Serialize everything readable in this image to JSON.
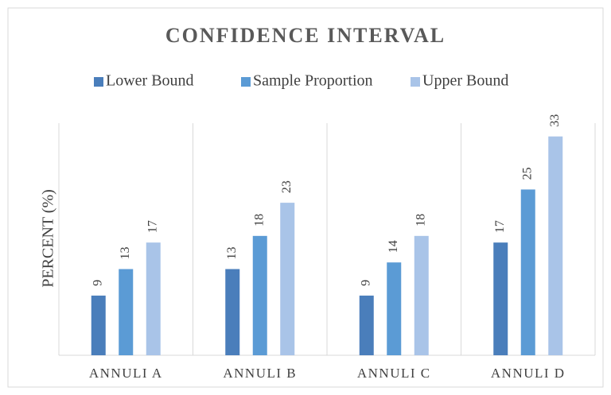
{
  "chart_data": {
    "type": "bar",
    "title": "CONFIDENCE INTERVAL",
    "y_label": "PERCENT (%)",
    "categories": [
      "ANNULI A",
      "ANNULI B",
      "ANNULI C",
      "ANNULI D"
    ],
    "series": [
      {
        "name": "Lower Bound",
        "color": "#4a7ebb",
        "values": [
          9,
          13,
          9,
          17
        ]
      },
      {
        "name": "Sample Proportion",
        "color": "#5b9bd5",
        "values": [
          13,
          18,
          14,
          25
        ]
      },
      {
        "name": "Upper Bound",
        "color": "#a9c4e8",
        "values": [
          17,
          23,
          18,
          33
        ]
      }
    ],
    "ylim": [
      0,
      35
    ],
    "legend": "top",
    "data_labels": true
  }
}
